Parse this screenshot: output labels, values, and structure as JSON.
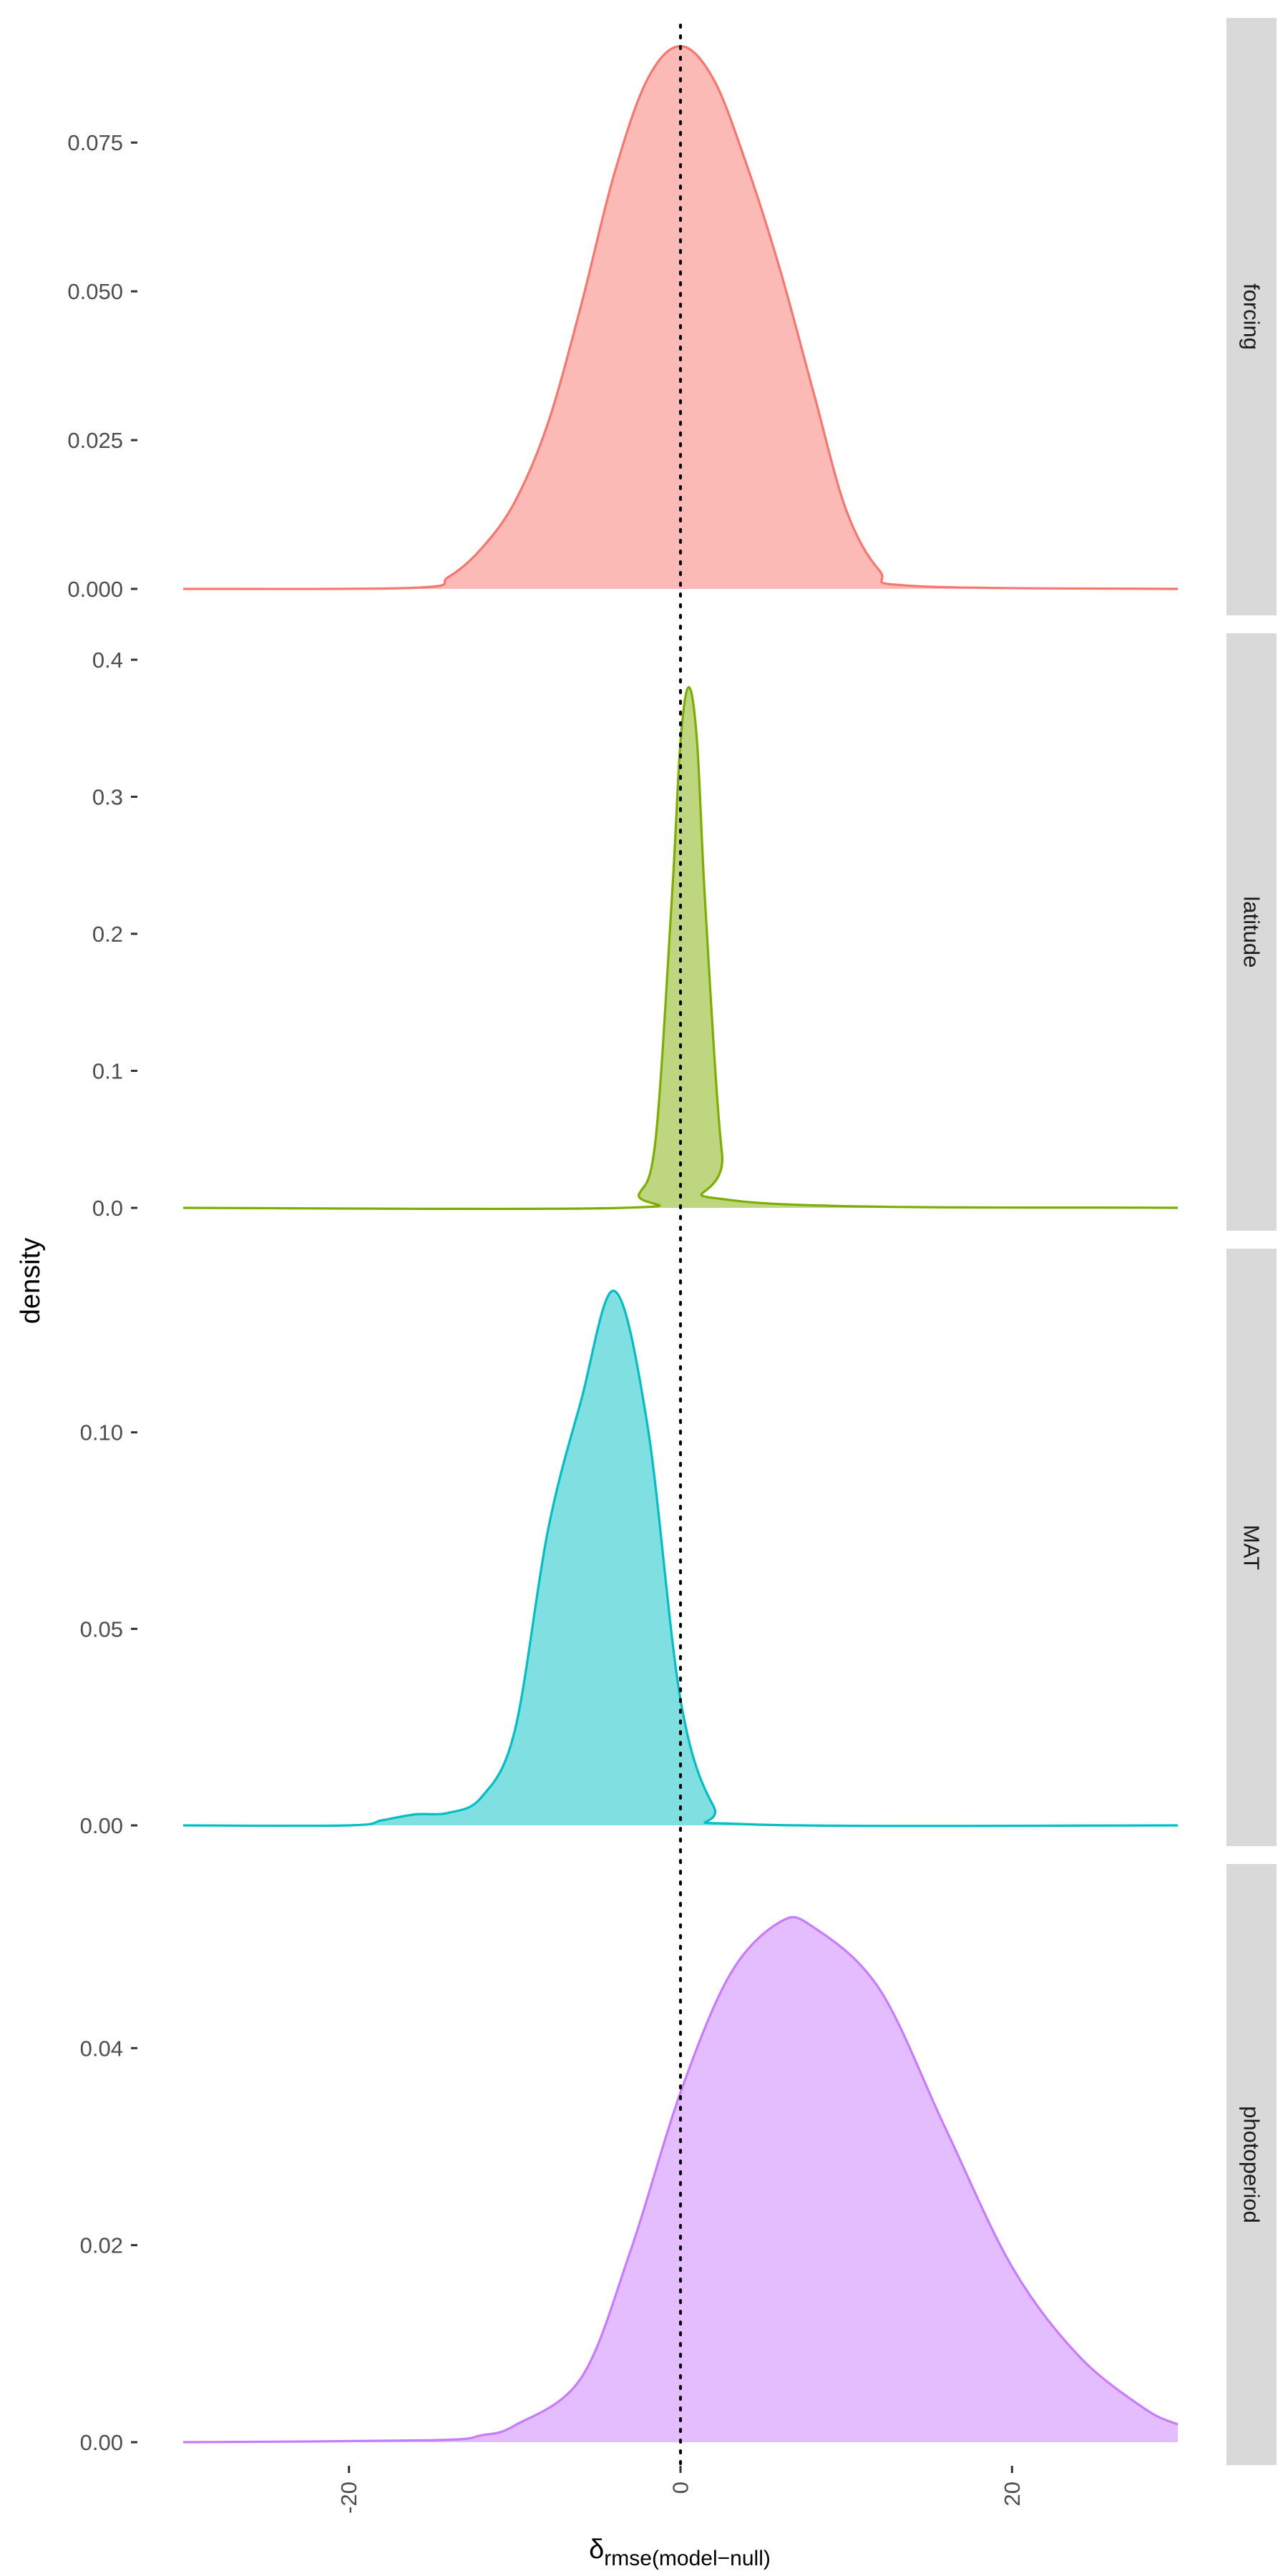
{
  "chart_data": {
    "type": "area",
    "chart_kind": "faceted density plot",
    "xlabel_main": "δ",
    "xlabel_subscript": "rmse(model−null)",
    "ylabel": "density",
    "xlim": [
      -30,
      30
    ],
    "x_ticks": [
      "-20",
      "0",
      "20"
    ],
    "x_tick_values": [
      -20,
      0,
      20
    ],
    "reference_line": {
      "x": 0,
      "style": "dotted",
      "color": "#000000"
    },
    "grid": false,
    "legend": "none",
    "facets": [
      {
        "label": "forcing",
        "color": "#F8766D",
        "fill": "#F8766D",
        "ylim": [
          0,
          0.0915
        ],
        "y_ticks": [
          "0.000",
          "0.025",
          "0.050",
          "0.075"
        ],
        "y_tick_values": [
          0,
          0.025,
          0.05,
          0.075
        ],
        "x": [
          -30,
          -16,
          -14,
          -12,
          -10,
          -8,
          -6,
          -4,
          -2,
          0,
          2,
          4,
          6,
          8,
          10,
          12,
          14,
          30
        ],
        "y": [
          0,
          0.0002,
          0.002,
          0.0068,
          0.0146,
          0.0278,
          0.0476,
          0.0697,
          0.0856,
          0.0912,
          0.0856,
          0.0712,
          0.0537,
          0.0333,
          0.0132,
          0.0031,
          0.0005,
          0
        ]
      },
      {
        "label": "latitude",
        "color": "#7CAE00",
        "fill": "#7CAE00",
        "ylim": [
          0,
          0.4
        ],
        "y_ticks": [
          "0.0",
          "0.1",
          "0.2",
          "0.3",
          "0.4"
        ],
        "y_tick_values": [
          0,
          0.1,
          0.2,
          0.3,
          0.4
        ],
        "x": [
          -30,
          -3.5,
          -2.5,
          -1.5,
          -0.5,
          0,
          0.5,
          1,
          1.5,
          2.5,
          3.5,
          30
        ],
        "y": [
          0,
          0,
          0.01,
          0.05,
          0.23,
          0.34,
          0.38,
          0.34,
          0.22,
          0.04,
          0.005,
          0
        ]
      },
      {
        "label": "MAT",
        "color": "#00BFC4",
        "fill": "#00BFC4",
        "ylim": [
          0,
          0.14
        ],
        "y_ticks": [
          "0.00",
          "0.05",
          "0.10"
        ],
        "y_tick_values": [
          0,
          0.05,
          0.1
        ],
        "x": [
          -30,
          -20,
          -18,
          -16,
          -14,
          -12,
          -10,
          -8,
          -6,
          -4,
          -2,
          0,
          2,
          4,
          30
        ],
        "y": [
          0,
          0,
          0.0013,
          0.0028,
          0.0032,
          0.0072,
          0.024,
          0.075,
          0.108,
          0.136,
          0.102,
          0.032,
          0.0048,
          0.0003,
          0
        ]
      },
      {
        "label": "photoperiod",
        "color": "#C77CFF",
        "fill": "#C77CFF",
        "ylim": [
          0,
          0.056
        ],
        "y_ticks": [
          "0.00",
          "0.02",
          "0.04"
        ],
        "y_tick_values": [
          0,
          0.02,
          0.04
        ],
        "x": [
          -30,
          -15,
          -12,
          -10,
          -6,
          -3,
          0,
          3,
          6,
          8,
          12,
          16,
          20,
          24,
          28,
          30
        ],
        "y": [
          0,
          0.0002,
          0.0007,
          0.0017,
          0.0065,
          0.0195,
          0.0355,
          0.0475,
          0.0528,
          0.0523,
          0.046,
          0.0318,
          0.0178,
          0.0088,
          0.0034,
          0.0018
        ]
      }
    ]
  }
}
